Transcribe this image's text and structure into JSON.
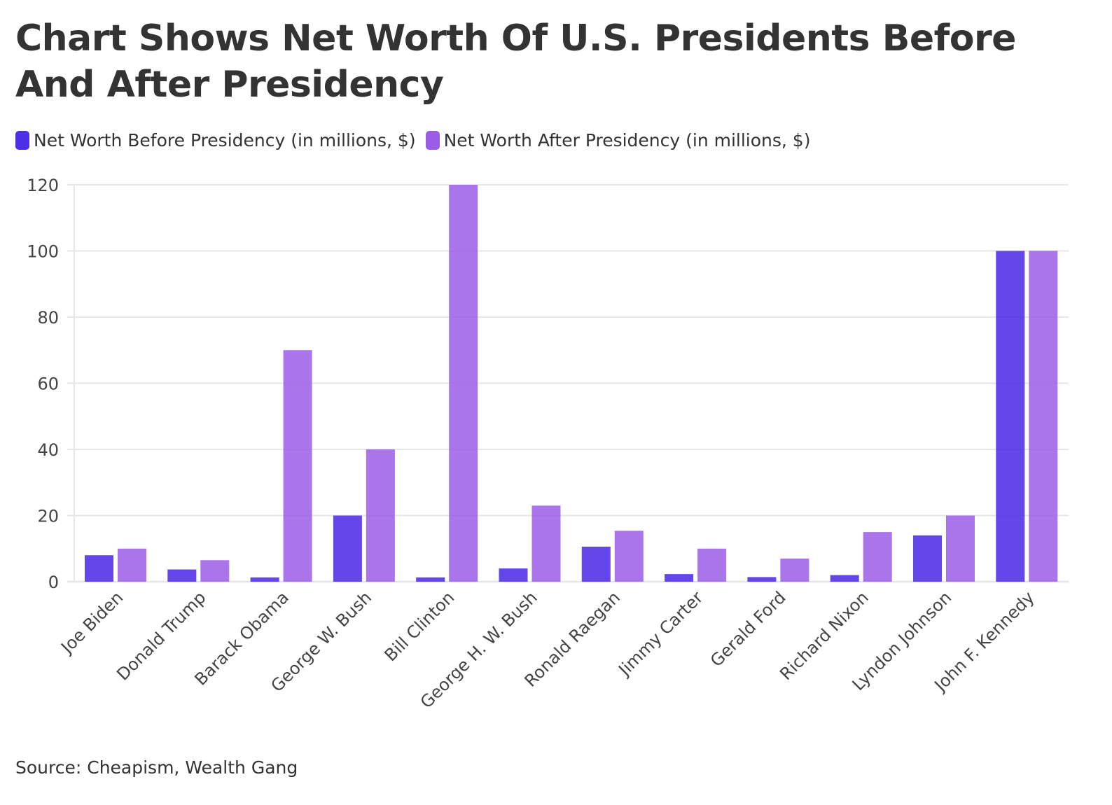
{
  "title": "Chart Shows Net Worth Of U.S. Presidents Before And After Presidency",
  "source": "Source: Cheapism, Wealth Gang",
  "colors": {
    "before": "#4f2ee8",
    "after": "#9b5ce6",
    "grid": "#e6e6e6",
    "text": "#333333",
    "tick_text": "#444444"
  },
  "chart_data": {
    "type": "bar",
    "title": "Chart Shows Net Worth Of U.S. Presidents Before And After Presidency",
    "xlabel": "",
    "ylabel": "",
    "ylim": [
      0,
      120
    ],
    "yticks": [
      0,
      20,
      40,
      60,
      80,
      100,
      120
    ],
    "grid": true,
    "legend_position": "top-left",
    "categories": [
      "Joe Biden",
      "Donald Trump",
      "Barack Obama",
      "George W. Bush",
      "Bill Clinton",
      "George H. W. Bush",
      "Ronald Raegan",
      "Jimmy Carter",
      "Gerald Ford",
      "Richard Nixon",
      "Lyndon Johnson",
      "John F. Kennedy"
    ],
    "series": [
      {
        "name": "Net Worth Before Presidency (in millions, $)",
        "color": "#4f2ee8",
        "values": [
          8,
          3.7,
          1.3,
          20,
          1.3,
          4,
          10.6,
          2.3,
          1.4,
          2,
          14,
          100
        ]
      },
      {
        "name": "Net Worth After Presidency (in millions, $)",
        "color": "#9b5ce6",
        "values": [
          10,
          6.5,
          70,
          40,
          120,
          23,
          15.4,
          10,
          7,
          15,
          20,
          100
        ]
      }
    ]
  }
}
